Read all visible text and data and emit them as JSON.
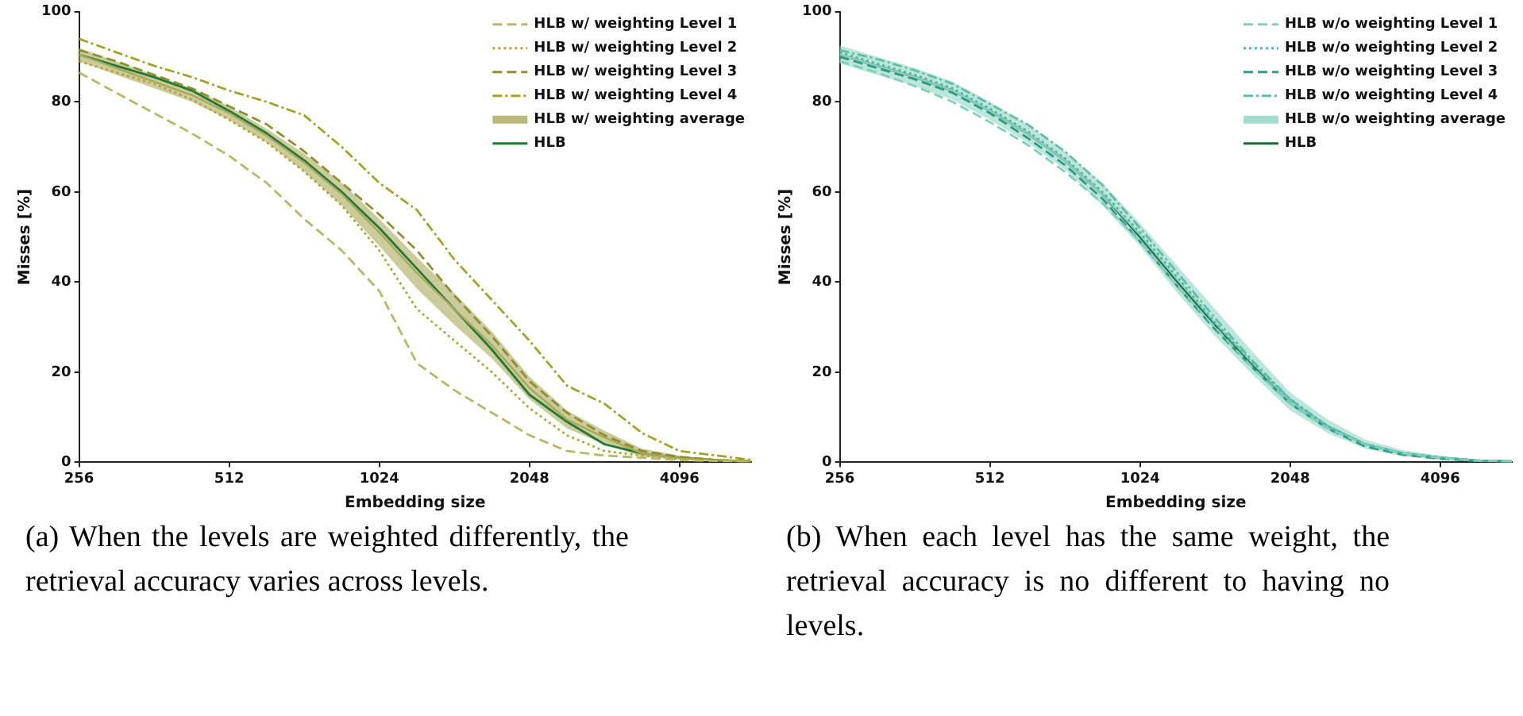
{
  "chart_data": [
    {
      "type": "line",
      "xlabel": "Embedding size",
      "ylabel": "Misses [%]",
      "log": "x",
      "xlim": [
        256,
        5700
      ],
      "xticks": [
        256,
        512,
        1024,
        2048,
        4096
      ],
      "ylim": [
        0,
        100
      ],
      "yticks": [
        0,
        20,
        40,
        60,
        80,
        100
      ],
      "grid": false,
      "legend": "top right",
      "marker": "none",
      "x": [
        256,
        304,
        362,
        431,
        512,
        609,
        724,
        861,
        1024,
        1218,
        1448,
        1722,
        2048,
        2435,
        2896,
        3444,
        4096,
        4871,
        5700
      ],
      "series": [
        {
          "name": "HLB w/ weighting Level 1",
          "color": "#b8b865",
          "line_style": "dashed",
          "values": [
            86.5,
            82,
            77.5,
            73,
            68,
            62,
            54,
            47,
            38,
            22,
            16,
            11,
            6,
            2.5,
            1.5,
            1,
            0.5,
            0.3,
            0.2
          ]
        },
        {
          "name": "HLB w/ weighting Level 2",
          "color": "#b0a832",
          "line_style": "dotted",
          "values": [
            89,
            86.5,
            84,
            80.5,
            76,
            71,
            64.5,
            57,
            47,
            34,
            27,
            20,
            12,
            6,
            2.5,
            1.5,
            0.8,
            0.4,
            0.2
          ]
        },
        {
          "name": "HLB w/ weighting Level 3",
          "color": "#8f8f2c",
          "line_style": "dashed",
          "values": [
            91.5,
            89,
            86,
            83,
            79,
            75,
            69,
            62,
            55,
            47,
            37,
            28,
            18,
            11,
            6,
            2.5,
            1.2,
            0.5,
            0.2
          ]
        },
        {
          "name": "HLB w/ weighting Level 4",
          "color": "#a3a324",
          "line_style": "dashdot",
          "values": [
            94,
            91,
            88,
            85.5,
            82.5,
            80,
            77,
            70,
            62,
            56,
            45,
            36,
            27,
            17,
            13,
            6.5,
            2.5,
            1.5,
            0.5
          ]
        },
        {
          "name": "HLB w/ weighting average",
          "color": "#a9a95a",
          "line_style": "solid",
          "values": [
            90.5,
            87.5,
            84.5,
            81.5,
            77.5,
            72.5,
            66.5,
            59.5,
            51,
            42,
            34,
            26,
            16.5,
            9.5,
            5.5,
            2,
            1,
            0.5,
            0.2
          ],
          "lower": [
            89,
            86,
            83,
            80,
            76,
            71,
            64.5,
            57,
            48,
            38.5,
            30.5,
            23,
            14,
            7.5,
            4,
            1.2,
            0.6,
            0.3,
            0.1
          ],
          "upper": [
            92,
            89,
            86,
            83,
            79,
            74,
            68.5,
            62,
            54,
            45.5,
            37.5,
            29,
            19,
            11.5,
            7,
            3,
            1.5,
            0.7,
            0.3
          ]
        },
        {
          "name": "HLB",
          "color": "#1f7a34",
          "line_style": "solid",
          "values": [
            90.5,
            88,
            85.5,
            82.5,
            78,
            73,
            67,
            60,
            52,
            43,
            34,
            25,
            15,
            9,
            4,
            2,
            1,
            0.5,
            0.2
          ]
        }
      ],
      "annotations": [
        "(a) When the levels are weighted differently, the retrieval accuracy varies across levels."
      ]
    },
    {
      "type": "line",
      "xlabel": "Embedding size",
      "ylabel": "Misses [%]",
      "log": "x",
      "xlim": [
        256,
        5700
      ],
      "xticks": [
        256,
        512,
        1024,
        2048,
        4096
      ],
      "ylim": [
        0,
        100
      ],
      "yticks": [
        0,
        20,
        40,
        60,
        80,
        100
      ],
      "grid": false,
      "legend": "top right",
      "marker": "none",
      "x": [
        256,
        304,
        362,
        431,
        512,
        609,
        724,
        861,
        1024,
        1218,
        1448,
        1722,
        2048,
        2435,
        2896,
        3444,
        4096,
        4871,
        5700
      ],
      "series": [
        {
          "name": "HLB w/o weighting Level 1",
          "color": "#7fcfbe",
          "line_style": "dashed",
          "values": [
            89,
            86.5,
            83.5,
            80,
            75.5,
            70.5,
            64.5,
            57.5,
            49,
            39,
            30,
            21,
            13,
            7.5,
            4,
            2,
            1,
            0.4,
            0.2
          ]
        },
        {
          "name": "HLB w/o weighting Level 2",
          "color": "#4fb8a2",
          "line_style": "dotted",
          "values": [
            91,
            88.5,
            86,
            83,
            78.5,
            73.5,
            67.5,
            60,
            51,
            41,
            31,
            22,
            14,
            8,
            4,
            2,
            1,
            0.4,
            0.2
          ]
        },
        {
          "name": "HLB w/o weighting Level 3",
          "color": "#2c9c84",
          "line_style": "dashed",
          "values": [
            90,
            87.5,
            85,
            82,
            77.5,
            72,
            66,
            58.5,
            49,
            39,
            29.5,
            21,
            13,
            7.5,
            3.5,
            1.7,
            0.8,
            0.3,
            0.1
          ]
        },
        {
          "name": "HLB w/o weighting Level 4",
          "color": "#5fc0aa",
          "line_style": "dashdot",
          "values": [
            91.5,
            89.5,
            87,
            84,
            79.5,
            75,
            69,
            61.5,
            52,
            42,
            32,
            22.5,
            14,
            8,
            4,
            2,
            1,
            0.4,
            0.2
          ]
        },
        {
          "name": "HLB w/o weighting average",
          "color": "#8fd3c4",
          "line_style": "solid",
          "values": [
            90.5,
            88,
            85.5,
            82.5,
            78,
            73,
            67,
            59.5,
            50.5,
            40.5,
            31,
            22,
            13.5,
            8,
            4,
            2,
            1,
            0.4,
            0.2
          ],
          "lower": [
            88.5,
            86,
            83.5,
            80.5,
            76,
            71,
            65,
            57,
            48,
            37.5,
            28,
            19.5,
            11.5,
            6.5,
            3,
            1.3,
            0.5,
            0.2,
            0.1
          ],
          "upper": [
            92.5,
            90,
            87.5,
            84.5,
            80,
            75,
            69,
            62,
            53,
            43.5,
            34,
            24.5,
            15.5,
            9.5,
            5,
            2.7,
            1.5,
            0.6,
            0.3
          ]
        },
        {
          "name": "HLB",
          "color": "#1d6b3c",
          "line_style": "solid",
          "values": [
            90.5,
            88,
            85.5,
            82.5,
            78,
            73,
            67,
            59.5,
            50,
            40,
            30.5,
            21.5,
            13.5,
            8,
            4,
            2,
            1,
            0.4,
            0.2
          ]
        }
      ],
      "annotations": [
        "(b) When each level has the same weight, the retrieval accuracy is no different to having no levels."
      ]
    }
  ]
}
